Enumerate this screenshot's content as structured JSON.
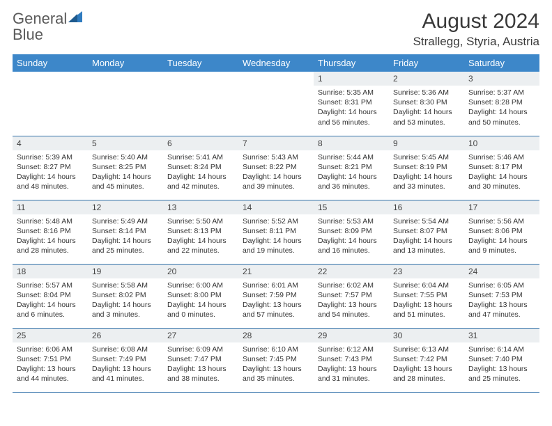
{
  "logo": {
    "text_a": "General",
    "text_b": "Blue"
  },
  "title": "August 2024",
  "location": "Strallegg, Styria, Austria",
  "colors": {
    "header_bg": "#3d87c9",
    "header_text": "#ffffff",
    "daynum_bg": "#eceff1",
    "row_divider": "#2f6fa8",
    "logo_gray": "#5a5a5a",
    "logo_blue": "#2f7bbf"
  },
  "weekdays": [
    "Sunday",
    "Monday",
    "Tuesday",
    "Wednesday",
    "Thursday",
    "Friday",
    "Saturday"
  ],
  "grid": [
    [
      {
        "empty": true
      },
      {
        "empty": true
      },
      {
        "empty": true
      },
      {
        "empty": true
      },
      {
        "n": "1",
        "sr": "5:35 AM",
        "ss": "8:31 PM",
        "dl": "14 hours and 56 minutes."
      },
      {
        "n": "2",
        "sr": "5:36 AM",
        "ss": "8:30 PM",
        "dl": "14 hours and 53 minutes."
      },
      {
        "n": "3",
        "sr": "5:37 AM",
        "ss": "8:28 PM",
        "dl": "14 hours and 50 minutes."
      }
    ],
    [
      {
        "n": "4",
        "sr": "5:39 AM",
        "ss": "8:27 PM",
        "dl": "14 hours and 48 minutes."
      },
      {
        "n": "5",
        "sr": "5:40 AM",
        "ss": "8:25 PM",
        "dl": "14 hours and 45 minutes."
      },
      {
        "n": "6",
        "sr": "5:41 AM",
        "ss": "8:24 PM",
        "dl": "14 hours and 42 minutes."
      },
      {
        "n": "7",
        "sr": "5:43 AM",
        "ss": "8:22 PM",
        "dl": "14 hours and 39 minutes."
      },
      {
        "n": "8",
        "sr": "5:44 AM",
        "ss": "8:21 PM",
        "dl": "14 hours and 36 minutes."
      },
      {
        "n": "9",
        "sr": "5:45 AM",
        "ss": "8:19 PM",
        "dl": "14 hours and 33 minutes."
      },
      {
        "n": "10",
        "sr": "5:46 AM",
        "ss": "8:17 PM",
        "dl": "14 hours and 30 minutes."
      }
    ],
    [
      {
        "n": "11",
        "sr": "5:48 AM",
        "ss": "8:16 PM",
        "dl": "14 hours and 28 minutes."
      },
      {
        "n": "12",
        "sr": "5:49 AM",
        "ss": "8:14 PM",
        "dl": "14 hours and 25 minutes."
      },
      {
        "n": "13",
        "sr": "5:50 AM",
        "ss": "8:13 PM",
        "dl": "14 hours and 22 minutes."
      },
      {
        "n": "14",
        "sr": "5:52 AM",
        "ss": "8:11 PM",
        "dl": "14 hours and 19 minutes."
      },
      {
        "n": "15",
        "sr": "5:53 AM",
        "ss": "8:09 PM",
        "dl": "14 hours and 16 minutes."
      },
      {
        "n": "16",
        "sr": "5:54 AM",
        "ss": "8:07 PM",
        "dl": "14 hours and 13 minutes."
      },
      {
        "n": "17",
        "sr": "5:56 AM",
        "ss": "8:06 PM",
        "dl": "14 hours and 9 minutes."
      }
    ],
    [
      {
        "n": "18",
        "sr": "5:57 AM",
        "ss": "8:04 PM",
        "dl": "14 hours and 6 minutes."
      },
      {
        "n": "19",
        "sr": "5:58 AM",
        "ss": "8:02 PM",
        "dl": "14 hours and 3 minutes."
      },
      {
        "n": "20",
        "sr": "6:00 AM",
        "ss": "8:00 PM",
        "dl": "14 hours and 0 minutes."
      },
      {
        "n": "21",
        "sr": "6:01 AM",
        "ss": "7:59 PM",
        "dl": "13 hours and 57 minutes."
      },
      {
        "n": "22",
        "sr": "6:02 AM",
        "ss": "7:57 PM",
        "dl": "13 hours and 54 minutes."
      },
      {
        "n": "23",
        "sr": "6:04 AM",
        "ss": "7:55 PM",
        "dl": "13 hours and 51 minutes."
      },
      {
        "n": "24",
        "sr": "6:05 AM",
        "ss": "7:53 PM",
        "dl": "13 hours and 47 minutes."
      }
    ],
    [
      {
        "n": "25",
        "sr": "6:06 AM",
        "ss": "7:51 PM",
        "dl": "13 hours and 44 minutes."
      },
      {
        "n": "26",
        "sr": "6:08 AM",
        "ss": "7:49 PM",
        "dl": "13 hours and 41 minutes."
      },
      {
        "n": "27",
        "sr": "6:09 AM",
        "ss": "7:47 PM",
        "dl": "13 hours and 38 minutes."
      },
      {
        "n": "28",
        "sr": "6:10 AM",
        "ss": "7:45 PM",
        "dl": "13 hours and 35 minutes."
      },
      {
        "n": "29",
        "sr": "6:12 AM",
        "ss": "7:43 PM",
        "dl": "13 hours and 31 minutes."
      },
      {
        "n": "30",
        "sr": "6:13 AM",
        "ss": "7:42 PM",
        "dl": "13 hours and 28 minutes."
      },
      {
        "n": "31",
        "sr": "6:14 AM",
        "ss": "7:40 PM",
        "dl": "13 hours and 25 minutes."
      }
    ]
  ],
  "labels": {
    "sunrise": "Sunrise:",
    "sunset": "Sunset:",
    "daylight": "Daylight:"
  }
}
